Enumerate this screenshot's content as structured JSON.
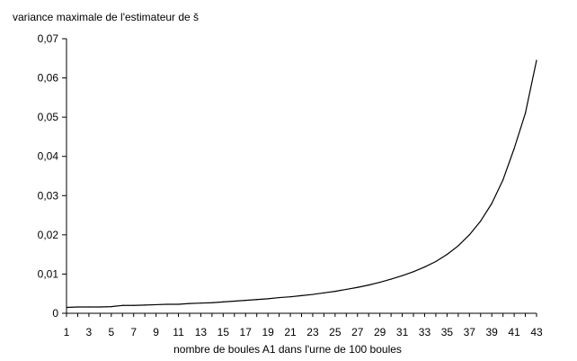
{
  "chart_data": {
    "type": "line",
    "title": "variance maximale de l'estimateur de š",
    "xlabel": "nombre de boules A1 dans l'urne de 100 boules",
    "ylabel": "",
    "x": [
      1,
      2,
      3,
      4,
      5,
      6,
      7,
      8,
      9,
      10,
      11,
      12,
      13,
      14,
      15,
      16,
      17,
      18,
      19,
      20,
      21,
      22,
      23,
      24,
      25,
      26,
      27,
      28,
      29,
      30,
      31,
      32,
      33,
      34,
      35,
      36,
      37,
      38,
      39,
      40,
      41,
      42,
      43
    ],
    "series": [
      {
        "values": [
          0.0015,
          0.0016,
          0.0016,
          0.0016,
          0.0017,
          0.002,
          0.002,
          0.0021,
          0.0022,
          0.0023,
          0.0023,
          0.0025,
          0.0026,
          0.0027,
          0.0029,
          0.0031,
          0.0033,
          0.0035,
          0.0037,
          0.004,
          0.0042,
          0.0045,
          0.0048,
          0.0052,
          0.0056,
          0.0061,
          0.0066,
          0.0072,
          0.0079,
          0.0087,
          0.0096,
          0.0106,
          0.0118,
          0.0132,
          0.015,
          0.0172,
          0.02,
          0.0235,
          0.028,
          0.034,
          0.042,
          0.051,
          0.0645
        ]
      }
    ],
    "xticks": [
      "1",
      "3",
      "5",
      "7",
      "9",
      "11",
      "13",
      "15",
      "17",
      "19",
      "21",
      "23",
      "25",
      "27",
      "29",
      "31",
      "33",
      "35",
      "37",
      "39",
      "41",
      "43"
    ],
    "yticks": [
      "0",
      "0,01",
      "0,02",
      "0,03",
      "0,04",
      "0,05",
      "0,06",
      "0,07"
    ],
    "ylim": [
      0,
      0.07
    ],
    "xlim": [
      1,
      43
    ],
    "grid": false,
    "colors": {
      "line": "#000000",
      "axis": "#000000"
    }
  }
}
